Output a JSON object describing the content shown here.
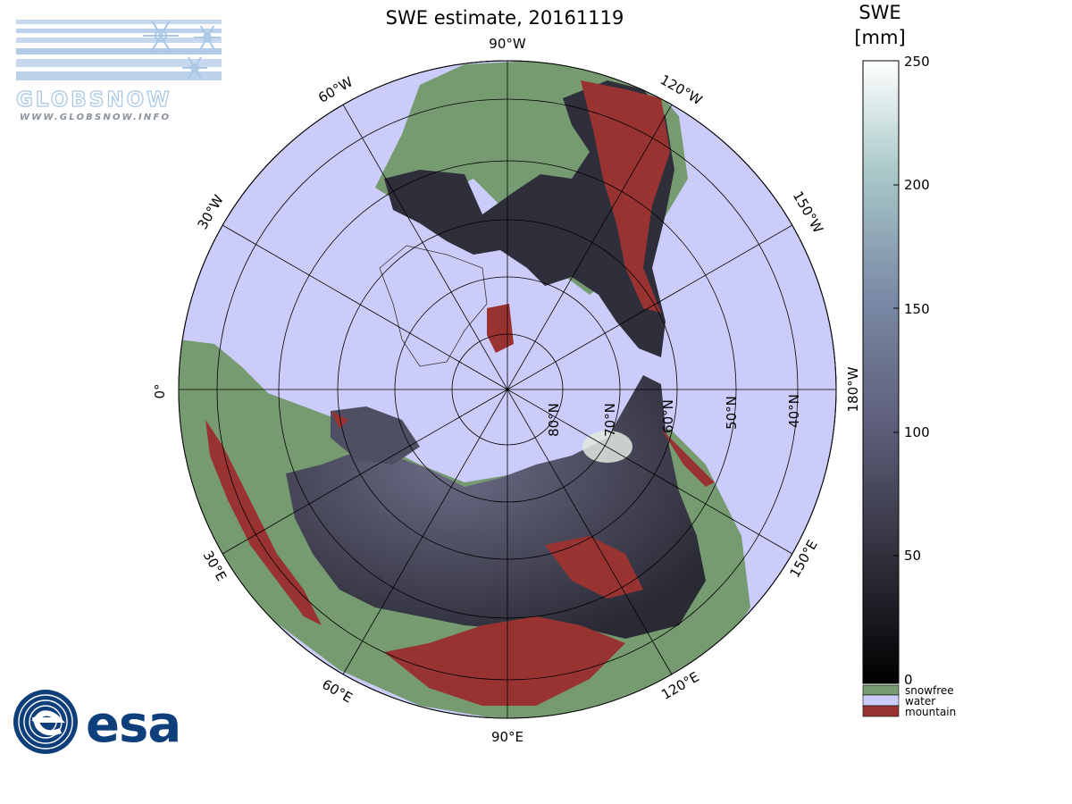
{
  "title": "SWE estimate, 20161119",
  "colorbar": {
    "label_line1": "SWE",
    "label_line2": "[mm]",
    "ticks": [
      "250",
      "200",
      "150",
      "100",
      "50",
      "0"
    ],
    "categories": [
      {
        "label": "snowfree",
        "color": "#769b70"
      },
      {
        "label": "water",
        "color": "#ccccfa"
      },
      {
        "label": "mountain",
        "color": "#993332"
      }
    ]
  },
  "map": {
    "projection": "north polar stereographic",
    "longitude_labels": [
      "90°W",
      "60°W",
      "120°W",
      "30°W",
      "150°W",
      "0°",
      "180°W",
      "30°E",
      "150°E",
      "60°E",
      "120°E",
      "90°E"
    ],
    "latitude_labels": [
      "80°N",
      "70°N",
      "60°N",
      "50°N",
      "40°N"
    ],
    "colors": {
      "snowfree": "#769b70",
      "water": "#ccccfa",
      "mountain": "#993332",
      "swe_low": "#16161e",
      "swe_mid": "#4b4b62",
      "swe_high": "#f7faf7"
    }
  },
  "logos": {
    "globsnow_name": "GLOBSNOW",
    "globsnow_url": "WWW.GLOBSNOW.INFO",
    "esa_name": "esa"
  }
}
